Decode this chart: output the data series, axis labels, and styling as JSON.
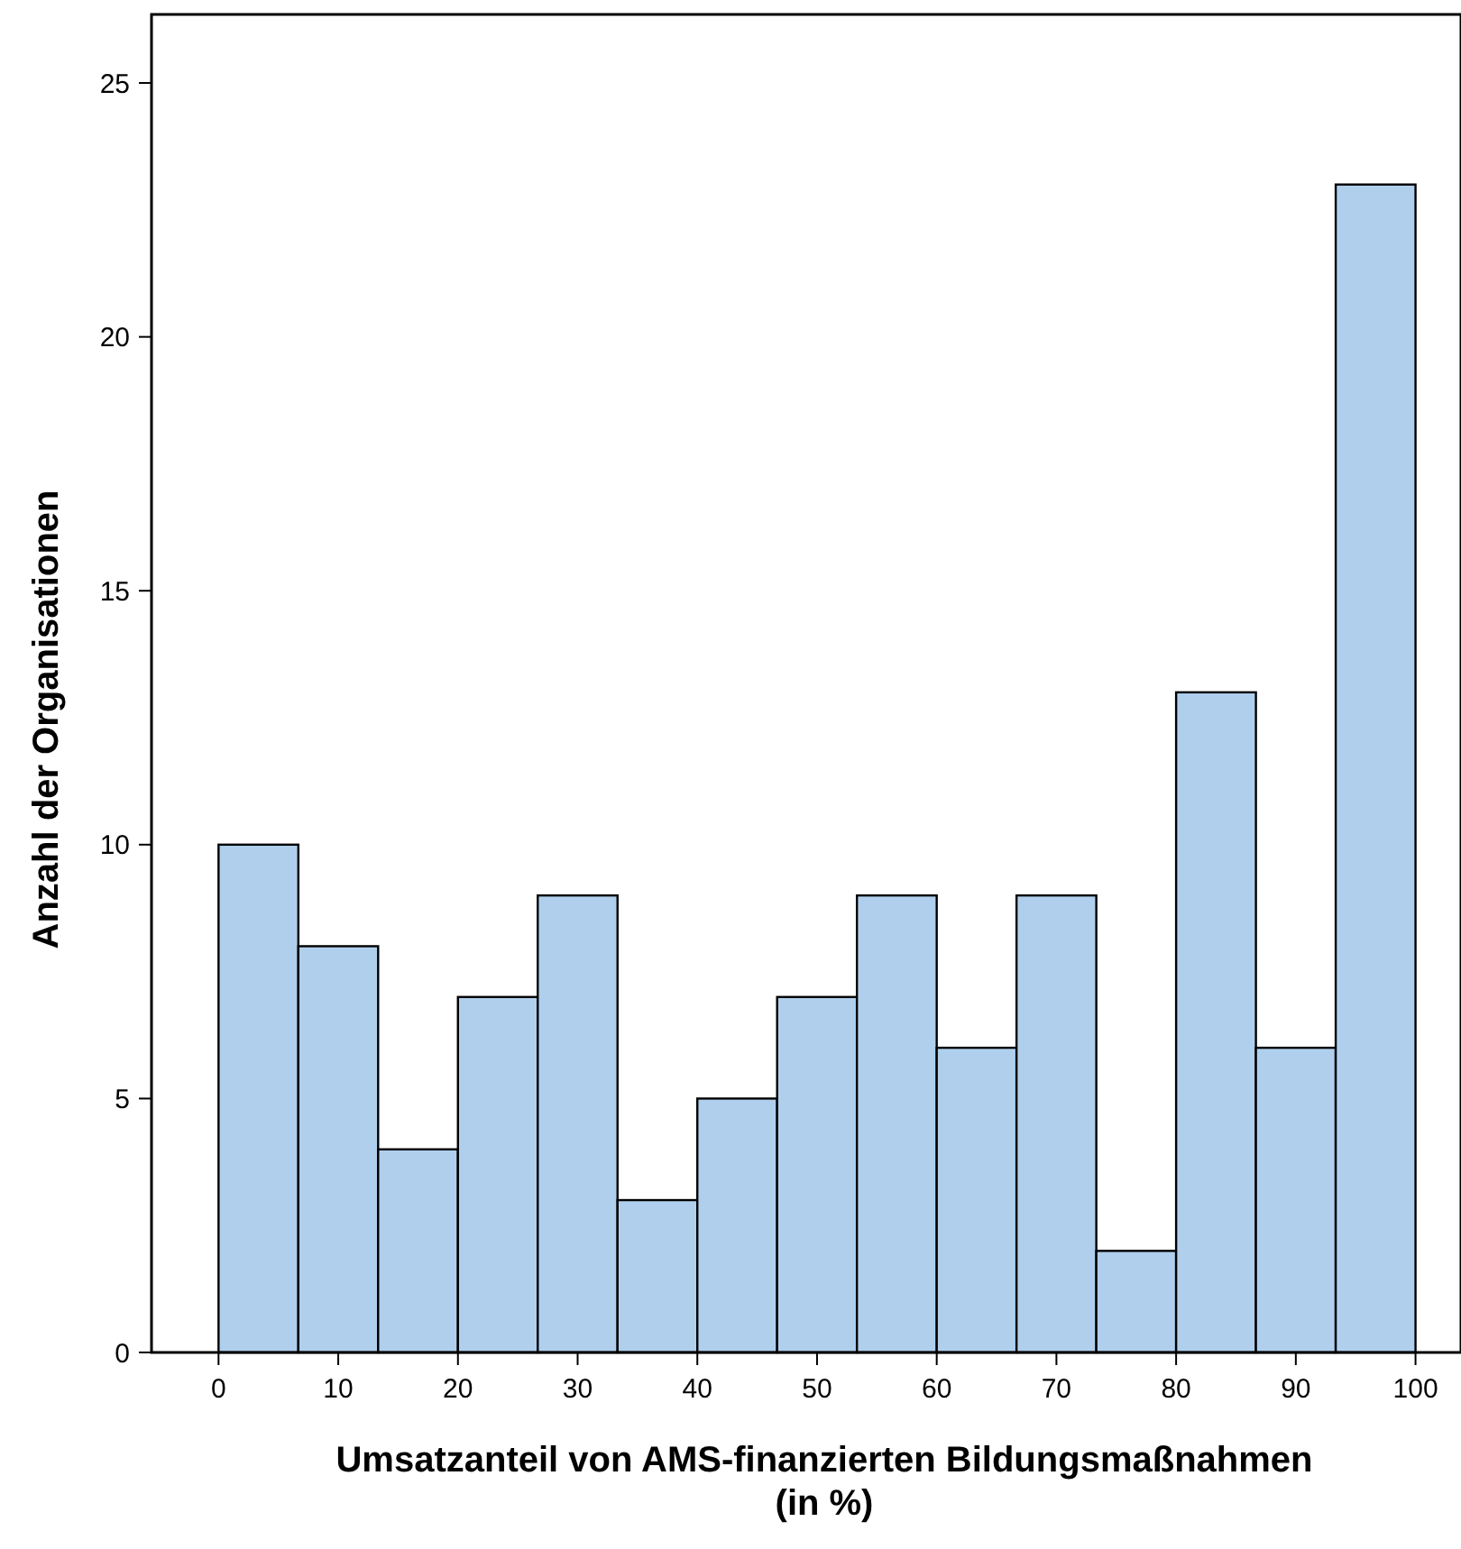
{
  "chart_data": {
    "type": "histogram",
    "xlabel": "Umsatzanteil von AMS-finanzierten Bildungsmaßnahmen (in %)",
    "ylabel": "Anzahl der Organisationen",
    "bins": [
      0,
      6.667,
      13.333,
      20,
      26.667,
      33.333,
      40,
      46.667,
      53.333,
      60,
      66.667,
      73.333,
      80,
      86.667,
      93.333,
      100
    ],
    "values": [
      10,
      8,
      4,
      7,
      9,
      3,
      5,
      7,
      9,
      6,
      9,
      2,
      13,
      6,
      23
    ],
    "color": "#afcfed",
    "xlim": [
      -5.6,
      103.8
    ],
    "ylim": [
      0,
      26.35
    ],
    "xticks": [
      0,
      10,
      20,
      30,
      40,
      50,
      60,
      70,
      80,
      90,
      100
    ],
    "yticks": [
      0,
      5,
      10,
      15,
      20,
      25
    ],
    "grid": false
  }
}
